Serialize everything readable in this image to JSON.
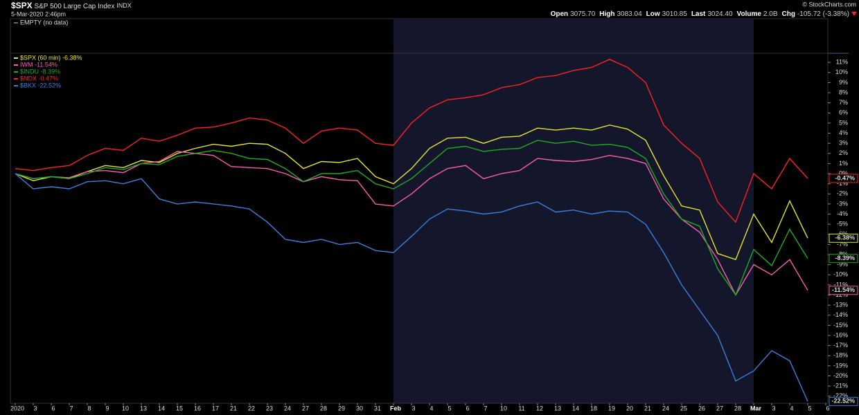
{
  "header": {
    "symbol": "$SPX",
    "name": "S&P 500 Large Cap Index",
    "exchange": "INDX",
    "date": "5-Mar-2020 2:46pm",
    "copyright": "© StockCharts.com",
    "stats": [
      {
        "label": "Open",
        "value": "3075.70"
      },
      {
        "label": "High",
        "value": "3083.04"
      },
      {
        "label": "Low",
        "value": "3010.85"
      },
      {
        "label": "Last",
        "value": "3024.40"
      },
      {
        "label": "Volume",
        "value": "2.0B"
      },
      {
        "label": "Chg",
        "value": "-105.72 (-3.38%)"
      }
    ]
  },
  "upper_panel": {
    "legend": "EMPTY (no data)"
  },
  "chart_data": {
    "type": "line",
    "categories": [
      "2020",
      "3",
      "6",
      "7",
      "8",
      "9",
      "10",
      "13",
      "14",
      "15",
      "16",
      "17",
      "21",
      "22",
      "23",
      "24",
      "27",
      "28",
      "29",
      "30",
      "31",
      "Feb",
      "3",
      "4",
      "5",
      "6",
      "7",
      "10",
      "11",
      "12",
      "13",
      "14",
      "18",
      "19",
      "20",
      "21",
      "24",
      "25",
      "26",
      "27",
      "28",
      "Mar",
      "3",
      "4",
      "5",
      "6"
    ],
    "series": [
      {
        "name": "$SPX (60 min) -6.38%",
        "last_label": "-6.38%",
        "color": "#e6e62e",
        "values": [
          0,
          -0.7,
          -0.3,
          -0.5,
          0.2,
          0.8,
          0.6,
          1.3,
          1.1,
          2.0,
          2.5,
          2.9,
          2.7,
          3.0,
          2.9,
          2.0,
          0.5,
          1.2,
          1.1,
          1.5,
          -0.3,
          -1.0,
          0.5,
          2.5,
          3.5,
          3.6,
          3.0,
          3.6,
          3.7,
          4.5,
          4.3,
          4.5,
          4.3,
          4.8,
          4.4,
          3.3,
          -0.2,
          -3.2,
          -3.6,
          -7.9,
          -8.5,
          -4.0,
          -6.8,
          -2.7,
          -6.38,
          null
        ]
      },
      {
        "name": "IWM -11.54%",
        "last_label": "-11.54%",
        "color": "#ff5cb0",
        "values": [
          0,
          -0.5,
          -0.3,
          -0.4,
          0.2,
          0.3,
          0.1,
          1.0,
          1.2,
          2.2,
          2.0,
          1.8,
          0.7,
          0.6,
          0.5,
          0,
          -0.8,
          -0.3,
          -0.6,
          -0.7,
          -3.0,
          -3.2,
          -2.0,
          -0.5,
          0.5,
          0.8,
          -0.5,
          0,
          0.3,
          1.5,
          1.3,
          1.2,
          1.4,
          1.8,
          1.5,
          1.0,
          -2.5,
          -4.5,
          -5.8,
          -8.5,
          -12.0,
          -9.0,
          -10.0,
          -8.5,
          -11.54,
          null
        ]
      },
      {
        "name": "$INDU -8.39%",
        "last_label": "-8.39%",
        "color": "#1fae1f",
        "values": [
          0,
          -0.5,
          -0.3,
          -0.5,
          0,
          0.6,
          0.4,
          1.0,
          0.9,
          1.7,
          2.0,
          2.3,
          2.0,
          1.5,
          1.4,
          0.5,
          -0.8,
          0,
          0,
          0.3,
          -1.0,
          -1.5,
          -0.5,
          1.0,
          2.5,
          2.7,
          2.2,
          2.4,
          2.5,
          3.3,
          3.0,
          3.2,
          2.8,
          2.9,
          2.6,
          1.5,
          -2.0,
          -4.5,
          -5.2,
          -9.4,
          -12.0,
          -7.5,
          -9.1,
          -5.5,
          -8.39,
          null
        ]
      },
      {
        "name": "$NDX -0.47%",
        "last_label": "-0.47%",
        "color": "#ff2222",
        "values": [
          0.5,
          0.3,
          0.6,
          0.8,
          1.8,
          2.5,
          2.3,
          3.5,
          3.2,
          3.8,
          4.5,
          4.6,
          5.0,
          5.5,
          5.3,
          4.5,
          3.0,
          4.2,
          4.5,
          4.3,
          3.0,
          2.8,
          5.0,
          6.5,
          7.3,
          7.5,
          7.8,
          8.5,
          8.8,
          9.5,
          9.7,
          10.2,
          10.5,
          11.3,
          10.5,
          9.0,
          4.8,
          3.0,
          1.5,
          -2.8,
          -4.8,
          0.0,
          -1.5,
          1.5,
          -0.47,
          null
        ]
      },
      {
        "name": "$BKX -22.52%",
        "last_label": "-22.52%",
        "color": "#3b80dc",
        "values": [
          0,
          -1.5,
          -1.3,
          -1.5,
          -0.8,
          -0.7,
          -1.0,
          -0.5,
          -2.5,
          -3.0,
          -2.8,
          -3.0,
          -3.2,
          -3.5,
          -4.8,
          -6.5,
          -6.8,
          -6.5,
          -7.0,
          -6.8,
          -7.6,
          -7.8,
          -6.2,
          -4.5,
          -3.5,
          -3.7,
          -4.0,
          -3.8,
          -3.2,
          -2.8,
          -3.8,
          -3.6,
          -4.0,
          -3.7,
          -3.8,
          -5.0,
          -7.8,
          -11.0,
          -13.5,
          -16.0,
          -20.5,
          -19.5,
          -17.5,
          -18.5,
          -22.52,
          null
        ]
      }
    ],
    "ylim": [
      -22.7,
      11.9
    ],
    "yticks": [
      {
        "value": 11,
        "label": "11%"
      },
      {
        "value": 10,
        "label": "10%"
      },
      {
        "value": 9,
        "label": "9%"
      },
      {
        "value": 8,
        "label": "8%"
      },
      {
        "value": 7,
        "label": "7%"
      },
      {
        "value": 6,
        "label": "6%"
      },
      {
        "value": 5,
        "label": "5%"
      },
      {
        "value": 4,
        "label": "4%"
      },
      {
        "value": 3,
        "label": "3%"
      },
      {
        "value": 2,
        "label": "2%"
      },
      {
        "value": 1,
        "label": "1%"
      },
      {
        "value": 0,
        "label": "0%"
      },
      {
        "value": -1,
        "label": "-1%"
      },
      {
        "value": -2,
        "label": "-2%"
      },
      {
        "value": -3,
        "label": "-3%"
      },
      {
        "value": -4,
        "label": "-4%"
      },
      {
        "value": -5,
        "label": "-5%"
      },
      {
        "value": -6,
        "label": "-6%"
      },
      {
        "value": -7,
        "label": "-7%"
      },
      {
        "value": -8,
        "label": "-8%"
      },
      {
        "value": -9,
        "label": "-9%"
      },
      {
        "value": -10,
        "label": "-10%"
      },
      {
        "value": -11,
        "label": "-11%"
      },
      {
        "value": -12,
        "label": "-12%"
      },
      {
        "value": -13,
        "label": "-13%"
      },
      {
        "value": -14,
        "label": "-14%"
      },
      {
        "value": -15,
        "label": "-15%"
      },
      {
        "value": -16,
        "label": "-16%"
      },
      {
        "value": -17,
        "label": "-17%"
      },
      {
        "value": -18,
        "label": "-18%"
      },
      {
        "value": -19,
        "label": "-19%"
      },
      {
        "value": -20,
        "label": "-20%"
      },
      {
        "value": -21,
        "label": "-21%"
      },
      {
        "value": -22,
        "label": "-22%"
      }
    ],
    "grid": false
  }
}
